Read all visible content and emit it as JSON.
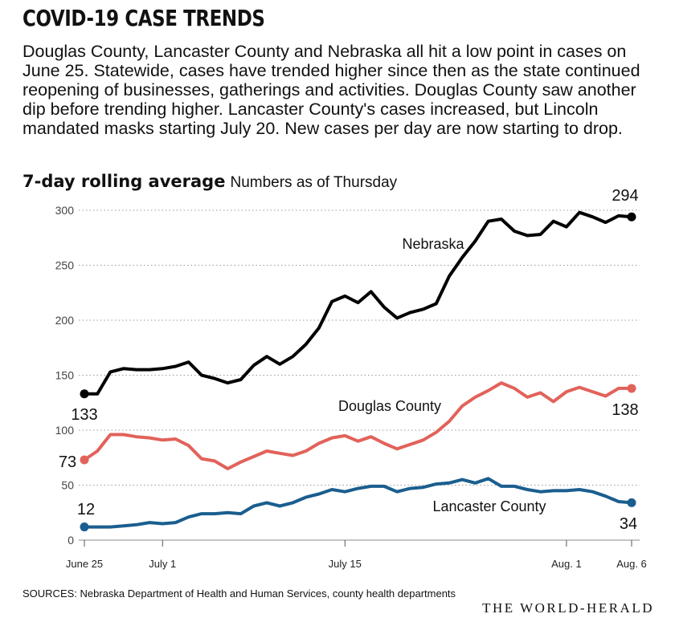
{
  "header": {
    "title": "COVID-19 CASE TRENDS",
    "intro": "Douglas County, Lancaster County and Nebraska all hit a low point in cases on June 25. Statewide, cases have trended higher since then as the state continued reopening of businesses, gatherings and activities. Douglas County saw another dip before trending higher. Lancaster County's cases increased, but Lincoln mandated masks starting July 20. New cases per day are now starting to drop.",
    "subtitle_bold": "7-day rolling average",
    "subtitle_light": "Numbers as of Thursday"
  },
  "footer": {
    "source": "SOURCES: Nebraska Department of Health and Human Services, county health departments",
    "logo": "THE WORLD-HERALD"
  },
  "chart_data": {
    "type": "line",
    "ylim": [
      0,
      300
    ],
    "yticks": [
      0,
      50,
      100,
      150,
      200,
      250,
      300
    ],
    "grid": "horizontal dotted",
    "x_range": [
      "June 25",
      "Aug. 6"
    ],
    "xticks": [
      {
        "label": "June 25",
        "day": 0
      },
      {
        "label": "July 1",
        "day": 6
      },
      {
        "label": "July 15",
        "day": 20
      },
      {
        "label": "Aug. 1",
        "day": 37
      },
      {
        "label": "Aug. 6",
        "day": 42
      }
    ],
    "series": [
      {
        "name": "Nebraska",
        "color": "#000000",
        "start_label": "133",
        "end_label": "294",
        "values": [
          133,
          133,
          153,
          156,
          155,
          155,
          156,
          158,
          162,
          150,
          147,
          143,
          146,
          159,
          167,
          160,
          167,
          178,
          193,
          217,
          222,
          216,
          226,
          212,
          202,
          207,
          210,
          215,
          240,
          257,
          272,
          290,
          292,
          281,
          277,
          278,
          290,
          285,
          298,
          294,
          289,
          295,
          294
        ]
      },
      {
        "name": "Douglas County",
        "color": "#e2625a",
        "start_label": "73",
        "end_label": "138",
        "values": [
          73,
          81,
          96,
          96,
          94,
          93,
          91,
          92,
          86,
          74,
          72,
          65,
          71,
          76,
          81,
          79,
          77,
          81,
          88,
          93,
          95,
          90,
          94,
          88,
          83,
          87,
          91,
          98,
          108,
          122,
          130,
          136,
          143,
          138,
          130,
          134,
          126,
          135,
          139,
          135,
          131,
          138,
          138
        ]
      },
      {
        "name": "Lancaster County",
        "color": "#1a5e8f",
        "start_label": "12",
        "end_label": "34",
        "values": [
          12,
          12,
          12,
          13,
          14,
          16,
          15,
          16,
          21,
          24,
          24,
          25,
          24,
          31,
          34,
          31,
          34,
          39,
          42,
          46,
          44,
          47,
          49,
          49,
          44,
          47,
          48,
          51,
          52,
          55,
          52,
          56,
          49,
          49,
          46,
          44,
          45,
          45,
          46,
          44,
          40,
          35,
          34
        ]
      }
    ]
  }
}
